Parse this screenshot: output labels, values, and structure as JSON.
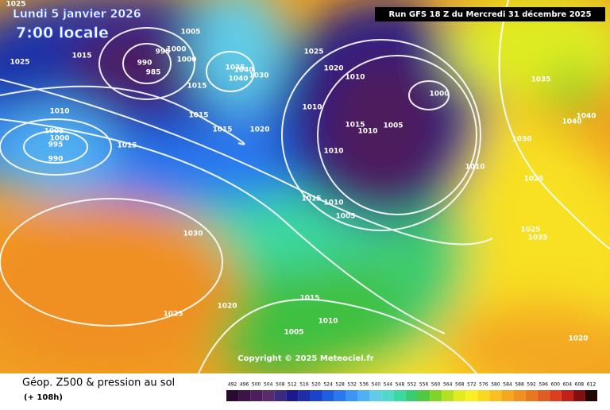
{
  "header": {
    "date": "Lundi 5 janvier 2026",
    "time": "7:00 locale",
    "run": "Run GFS 18 Z du Mercredi 31 décembre 2025"
  },
  "footer": {
    "title": "Géop. Z500 & pression au sol",
    "lead": "(+ 108h)",
    "copyright": "Copyright © 2025 Meteociel.fr"
  },
  "scale": {
    "values": [
      492,
      496,
      500,
      504,
      508,
      512,
      516,
      520,
      524,
      528,
      532,
      536,
      540,
      544,
      548,
      552,
      556,
      560,
      564,
      568,
      572,
      576,
      580,
      584,
      588,
      592,
      596,
      600,
      604,
      608,
      612
    ],
    "colors": [
      "#2a0a30",
      "#3c1446",
      "#4e1e5c",
      "#5a2a6e",
      "#3a2a80",
      "#1a1a8c",
      "#1e2ea8",
      "#1a44c8",
      "#1e5ee0",
      "#2a78f0",
      "#3c94f4",
      "#50b0f4",
      "#60cce8",
      "#50d8c8",
      "#3cd8a0",
      "#3ccc70",
      "#50c840",
      "#80d428",
      "#b4e020",
      "#e0ec20",
      "#f8f020",
      "#f8d820",
      "#f8c020",
      "#f4a820",
      "#f09020",
      "#e87820",
      "#e05c20",
      "#d84020",
      "#c02018",
      "#801010",
      "#200808"
    ]
  },
  "isobars": [
    1025,
    1015,
    1005,
    1000,
    1000,
    990,
    995,
    985,
    1025,
    1025,
    1020,
    1010,
    1035,
    1000,
    1010,
    1015,
    1010,
    1005,
    1010,
    1010,
    1030,
    1040,
    1040,
    1010,
    1005,
    1000,
    995,
    990,
    1015,
    1015,
    1020,
    1015,
    1035,
    1040,
    1030,
    1040,
    1015,
    1015,
    1010,
    1005,
    1025,
    1025,
    1035,
    1030,
    1020,
    1025,
    1015,
    1010,
    1005,
    1020
  ]
}
